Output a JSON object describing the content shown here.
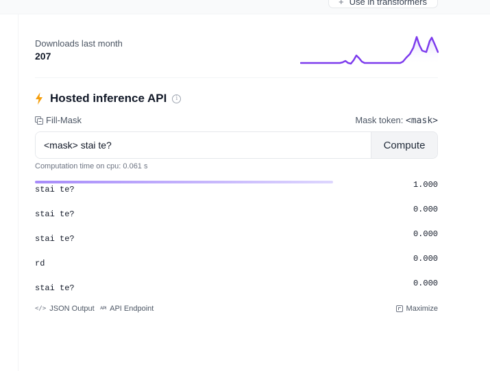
{
  "header": {
    "top_button_label": "Use in transformers",
    "top_button_icon": "plus-icon"
  },
  "downloads": {
    "label": "Downloads last month",
    "count": "207",
    "sparkline_color": "#7c3aed"
  },
  "inference": {
    "title": "Hosted inference API",
    "title_icon": "lightning-icon",
    "info_icon": "info-icon",
    "task_label": "Fill-Mask",
    "task_icon": "fill-mask-icon",
    "mask_token_label": "Mask token:",
    "mask_token_value": "<mask>",
    "input_value": "<mask> stai te?",
    "compute_label": "Compute",
    "computation_time": "Computation time on cpu: 0.061 s",
    "accent_color": "#a78bfa",
    "results": [
      {
        "label": "stai te?",
        "score": "1.000",
        "fraction": 0.74
      },
      {
        "label": "stai te?",
        "score": "0.000",
        "fraction": 0
      },
      {
        "label": "stai te?",
        "score": "0.000",
        "fraction": 0
      },
      {
        "label": "rd",
        "score": "0.000",
        "fraction": 0
      },
      {
        "label": "stai te?",
        "score": "0.000",
        "fraction": 0
      }
    ],
    "footer": {
      "json_output": "JSON Output",
      "api_endpoint": "API Endpoint",
      "maximize": "Maximize"
    }
  }
}
